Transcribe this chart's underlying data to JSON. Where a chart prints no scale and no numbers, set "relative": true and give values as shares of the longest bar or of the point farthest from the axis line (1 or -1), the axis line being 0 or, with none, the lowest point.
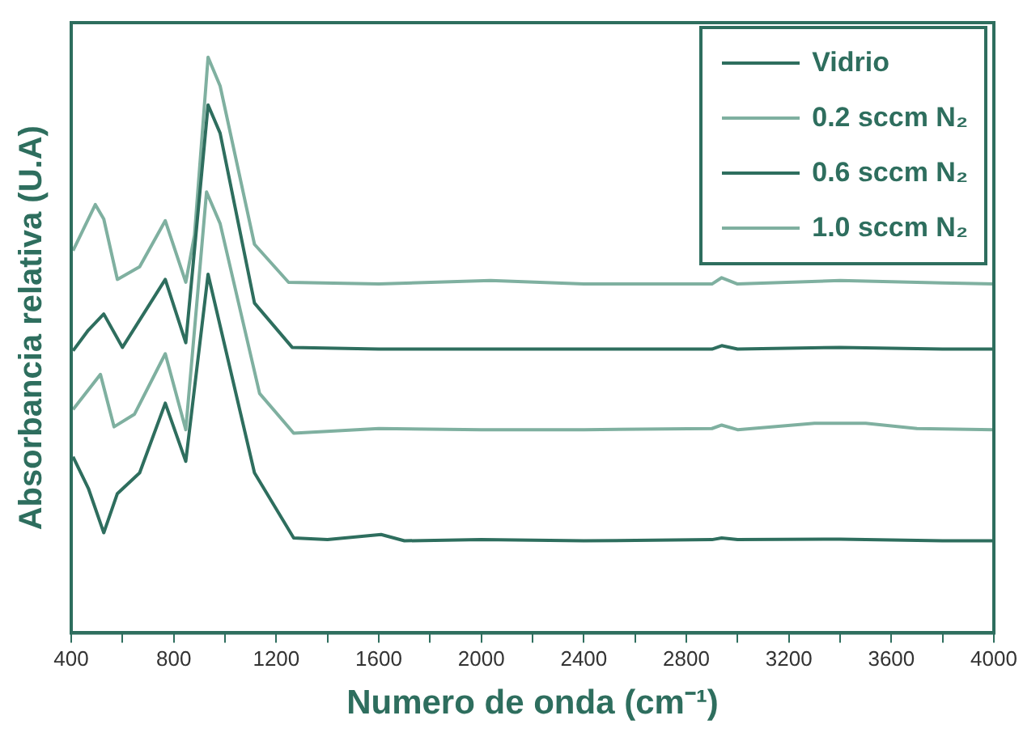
{
  "chart_data": {
    "type": "line",
    "relative": true,
    "xlabel": "Numero de onda (cm⁻¹)",
    "ylabel": "Absorbancia relativa (U.A)",
    "xlim": [
      400,
      4000
    ],
    "xticks": [
      400,
      {
        "value": 600,
        "label": null
      },
      800,
      {
        "value": 1000,
        "label": null
      },
      1200,
      {
        "value": 1400,
        "label": null
      },
      1600,
      {
        "value": 1800,
        "label": null
      },
      2000,
      {
        "value": 2200,
        "label": null
      },
      2400,
      {
        "value": 2600,
        "label": null
      },
      2800,
      {
        "value": 3000,
        "label": null
      },
      3200,
      {
        "value": 3400,
        "label": null
      },
      3600,
      {
        "value": 3800,
        "label": null
      },
      4000
    ],
    "grid": false,
    "legend": "top right",
    "marker": "none",
    "line_style": "solid",
    "series": [
      {
        "name": "Vidrio",
        "color": "#2e6e5e",
        "x": [
          407,
          467,
          527,
          580,
          667,
          767,
          847,
          934,
          1115,
          1268,
          1400,
          1609,
          1700,
          2000,
          2400,
          2900,
          2938,
          3000,
          3400,
          3800,
          4000
        ],
        "values": [
          0.306,
          0.251,
          0.174,
          0.242,
          0.278,
          0.399,
          0.298,
          0.623,
          0.278,
          0.165,
          0.162,
          0.171,
          0.16,
          0.162,
          0.16,
          0.162,
          0.165,
          0.162,
          0.163,
          0.16,
          0.16
        ]
      },
      {
        "name": "0.2 sccm N₂",
        "color": "#7fb0a0",
        "x": [
          407,
          514,
          567,
          647,
          767,
          847,
          928,
          981,
          1135,
          1268,
          1600,
          2000,
          2400,
          2900,
          2938,
          3000,
          3300,
          3500,
          3700,
          4000
        ],
        "values": [
          0.388,
          0.449,
          0.358,
          0.38,
          0.485,
          0.353,
          0.766,
          0.711,
          0.416,
          0.347,
          0.355,
          0.353,
          0.353,
          0.355,
          0.361,
          0.353,
          0.364,
          0.364,
          0.355,
          0.353
        ]
      },
      {
        "name": "0.6 sccm N₂",
        "color": "#2e6e5e",
        "x": [
          407,
          467,
          527,
          600,
          767,
          847,
          934,
          981,
          1115,
          1262,
          1600,
          2000,
          2400,
          2900,
          2938,
          3000,
          3400,
          3800,
          4000
        ],
        "values": [
          0.49,
          0.526,
          0.554,
          0.496,
          0.614,
          0.504,
          0.917,
          0.868,
          0.573,
          0.496,
          0.493,
          0.493,
          0.493,
          0.493,
          0.499,
          0.493,
          0.496,
          0.493,
          0.493
        ]
      },
      {
        "name": "1.0 sccm N₂",
        "color": "#7fb0a0",
        "x": [
          407,
          494,
          527,
          580,
          667,
          767,
          847,
          881,
          934,
          981,
          1115,
          1248,
          1600,
          2036,
          2400,
          2900,
          2938,
          3000,
          3400,
          3800,
          4000
        ],
        "values": [
          0.664,
          0.744,
          0.719,
          0.614,
          0.636,
          0.716,
          0.609,
          0.691,
          1.0,
          0.95,
          0.675,
          0.609,
          0.606,
          0.612,
          0.606,
          0.606,
          0.617,
          0.606,
          0.612,
          0.608,
          0.606
        ]
      }
    ]
  }
}
